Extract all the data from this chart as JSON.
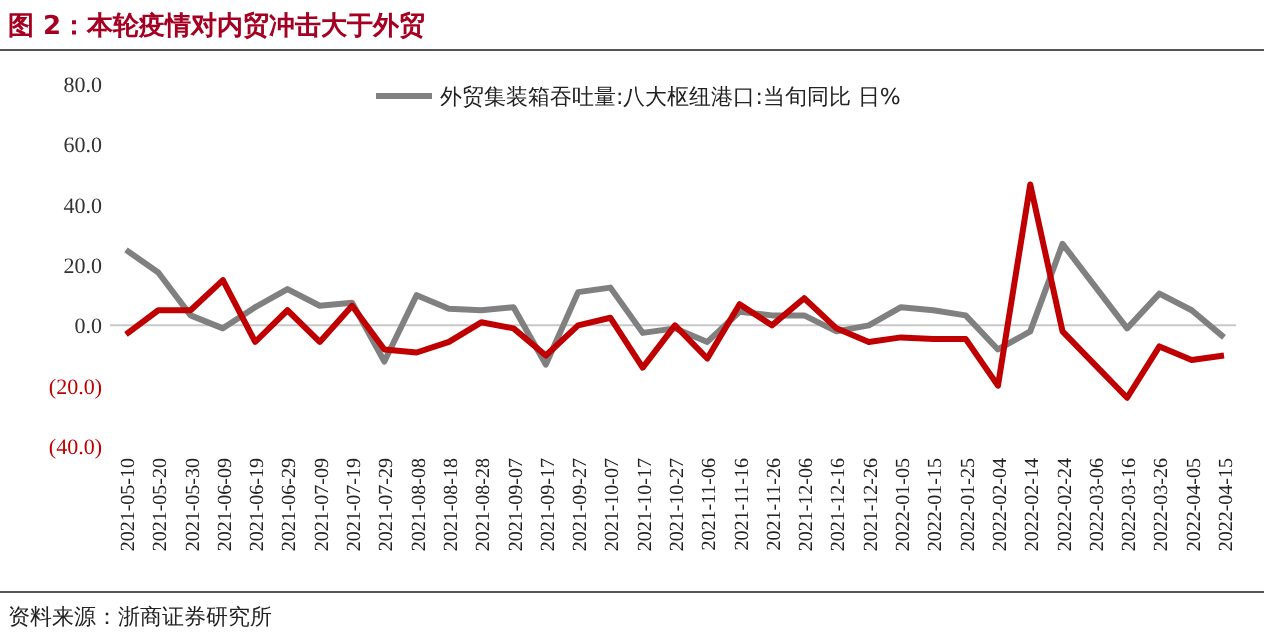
{
  "chart_data": {
    "type": "line",
    "title": "图 2：本轮疫情对内贸冲击大于外贸",
    "categories": [
      "2021-05-10",
      "2021-05-20",
      "2021-05-30",
      "2021-06-09",
      "2021-06-19",
      "2021-06-29",
      "2021-07-09",
      "2021-07-19",
      "2021-07-29",
      "2021-08-08",
      "2021-08-18",
      "2021-08-28",
      "2021-09-07",
      "2021-09-17",
      "2021-09-27",
      "2021-10-07",
      "2021-10-17",
      "2021-10-27",
      "2021-11-06",
      "2021-11-16",
      "2021-11-26",
      "2021-12-06",
      "2021-12-16",
      "2021-12-26",
      "2022-01-05",
      "2022-01-15",
      "2022-01-25",
      "2022-02-04",
      "2022-02-14",
      "2022-02-24",
      "2022-03-06",
      "2022-03-16",
      "2022-03-26",
      "2022-04-05",
      "2022-04-15"
    ],
    "series": [
      {
        "name": "外贸集装箱吞吐量:八大枢纽港口:当旬同比 日%",
        "color": "#808080",
        "values": [
          25,
          17.5,
          3.3,
          -1,
          6,
          12,
          6.5,
          7.5,
          -12,
          10,
          5.5,
          5,
          6,
          -13,
          11,
          12.5,
          -2.5,
          -1,
          -5.5,
          4.5,
          3.3,
          3.3,
          -2,
          0,
          6,
          5,
          3.3,
          -8,
          -2,
          27,
          13,
          -1,
          10.5,
          5,
          -4
        ]
      },
      {
        "color": "#c00000",
        "values": [
          -3,
          5,
          5,
          15,
          -5.5,
          5,
          -5.5,
          6.5,
          -8,
          -9,
          -5.5,
          1,
          -1,
          -10,
          0,
          2.5,
          -14,
          0,
          -11,
          7,
          0,
          9,
          -1,
          -5.5,
          -4,
          -4.5,
          -4.5,
          -20,
          46.7,
          -2,
          -13,
          -24,
          -7,
          -11.5,
          -10
        ]
      }
    ],
    "ylim": [
      -40,
      80
    ],
    "yticks": [
      {
        "value": -40,
        "label": "(40.0)"
      },
      {
        "value": -20,
        "label": "(20.0)"
      },
      {
        "value": 0,
        "label": "0.0"
      },
      {
        "value": 20,
        "label": "20.0"
      },
      {
        "value": 40,
        "label": "40.0"
      },
      {
        "value": 60,
        "label": "60.0"
      },
      {
        "value": 80,
        "label": "80.0"
      }
    ],
    "legend": "top right",
    "ref_lines": [
      {
        "axis": "y",
        "value": 0,
        "color": "#c8c8c8"
      }
    ],
    "marker": "none",
    "line_style": "solid",
    "annotations": [
      "资料来源：浙商证券研究所"
    ]
  }
}
